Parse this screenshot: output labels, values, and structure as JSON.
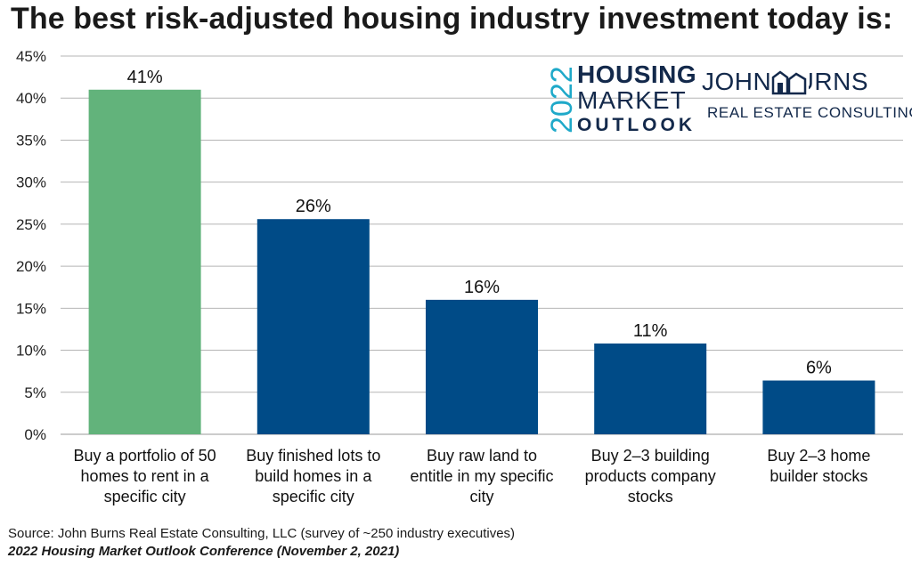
{
  "title": "The best risk-adjusted housing industry investment today is:",
  "chart_data": {
    "type": "bar",
    "title": "The best risk-adjusted housing industry investment today is:",
    "categories": [
      [
        "Buy a portfolio of 50",
        "homes to rent in a",
        "specific city"
      ],
      [
        "Buy finished lots to",
        "build homes in a",
        "specific city"
      ],
      [
        "Buy raw land to",
        "entitle in my specific",
        "city"
      ],
      [
        "Buy 2–3 building",
        "products company",
        "stocks"
      ],
      [
        "Buy 2–3 home",
        "builder stocks"
      ]
    ],
    "values": [
      41,
      25.6,
      16,
      10.8,
      6.4
    ],
    "data_labels": [
      "41%",
      "26%",
      "16%",
      "11%",
      "6%"
    ],
    "bar_colors": [
      "#62b37b",
      "#004b87",
      "#004b87",
      "#004b87",
      "#004b87"
    ],
    "ylim": [
      0,
      45
    ],
    "yticks": [
      0,
      5,
      10,
      15,
      20,
      25,
      30,
      35,
      40,
      45
    ],
    "ytick_labels": [
      "0%",
      "5%",
      "10%",
      "15%",
      "20%",
      "25%",
      "30%",
      "35%",
      "40%",
      "45%"
    ],
    "xlabel": "",
    "ylabel": "",
    "grid": true
  },
  "logo": {
    "year": "2022",
    "line1": "HOUSING",
    "line2": "MARKET",
    "line3": "OUTLOOK",
    "company": "JOHN BURNS",
    "company_sub": "REAL ESTATE CONSULTING",
    "year_color": "#1fa9c9",
    "brand_color": "#13294b"
  },
  "footer": {
    "source": "Source: John Burns Real Estate Consulting, LLC (survey of ~250 industry executives)",
    "conference": "2022 Housing Market Outlook Conference (November 2, 2021)"
  }
}
